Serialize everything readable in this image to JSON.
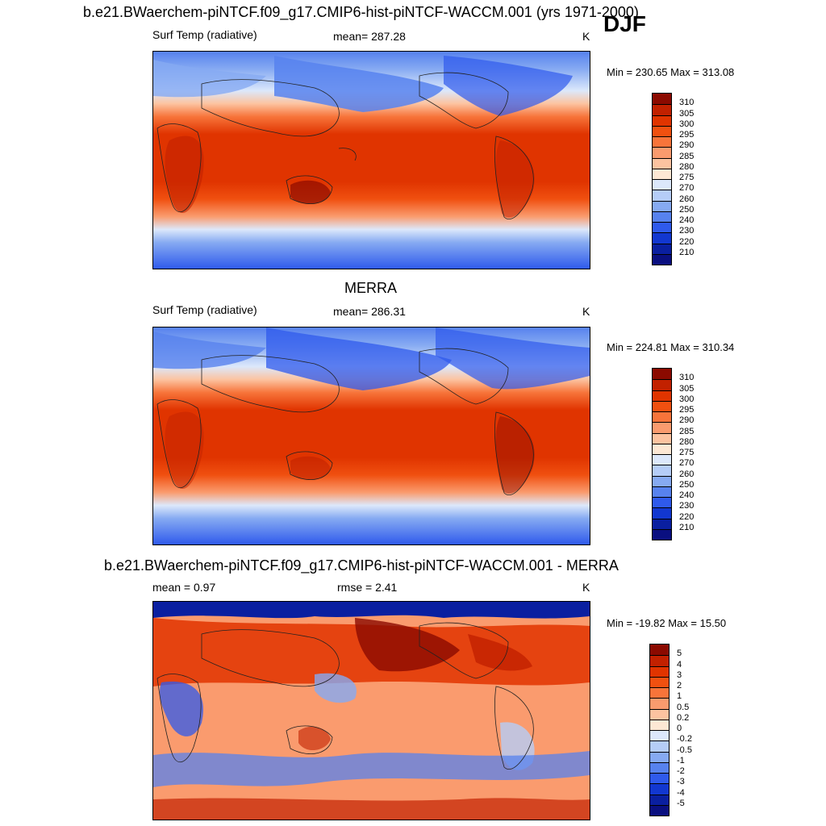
{
  "season": "DJF",
  "top": {
    "title": "b.e21.BWaerchem-piNTCF.f09_g17.CMIP6-hist-piNTCF-WACCM.001 (yrs 1971-2000)",
    "variable": "Surf Temp (radiative)",
    "stat": "mean= 287.28",
    "units": "K",
    "minmax": "Min = 230.65 Max = 313.08",
    "kind": "abs"
  },
  "middle": {
    "title": "MERRA",
    "variable": "Surf Temp (radiative)",
    "stat": "mean= 286.31",
    "units": "K",
    "minmax": "Min = 224.81 Max = 310.34",
    "kind": "abs"
  },
  "bottom": {
    "title": "b.e21.BWaerchem-piNTCF.f09_g17.CMIP6-hist-piNTCF-WACCM.001 - MERRA",
    "stat_mean": "mean =   0.97",
    "stat_rmse": "rmse =   2.41",
    "units": "K",
    "minmax": "Min = -19.82 Max =  15.50",
    "kind": "diff"
  },
  "colorbar_abs": {
    "labels": [
      "310",
      "305",
      "300",
      "295",
      "290",
      "285",
      "280",
      "275",
      "270",
      "260",
      "250",
      "240",
      "230",
      "220",
      "210"
    ],
    "colors": [
      "#8b0a00",
      "#c22100",
      "#e03400",
      "#f05010",
      "#f7743a",
      "#fa9b6e",
      "#fcc3a0",
      "#fde8d4",
      "#dce8fb",
      "#b5cdf7",
      "#86aaf2",
      "#5782ee",
      "#2f5aec",
      "#1237d0",
      "#0a1fa0",
      "#0a0f80"
    ]
  },
  "colorbar_diff": {
    "labels": [
      "5",
      "4",
      "3",
      "2",
      "1",
      "0.5",
      "0.2",
      "0",
      "-0.2",
      "-0.5",
      "-1",
      "-2",
      "-3",
      "-4",
      "-5"
    ],
    "colors": [
      "#8b0a00",
      "#c22100",
      "#e03400",
      "#f05010",
      "#f7743a",
      "#fa9b6e",
      "#fcc3a0",
      "#fde8d4",
      "#dce8fb",
      "#b5cdf7",
      "#86aaf2",
      "#5782ee",
      "#2f5aec",
      "#1237d0",
      "#0a1fa0",
      "#0a0f80"
    ]
  }
}
